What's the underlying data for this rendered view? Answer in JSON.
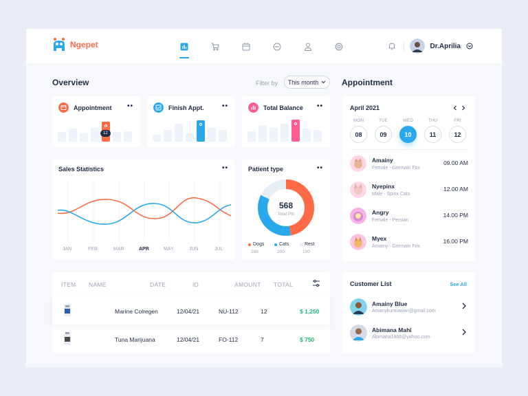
{
  "brand": {
    "name": "Ngepet"
  },
  "nav": {
    "icons": [
      "chart-icon",
      "cart-icon",
      "calendar-icon",
      "chat-icon",
      "user-icon",
      "settings-icon"
    ],
    "active_index": 0
  },
  "user": {
    "name": "Dr.Aprilia"
  },
  "overview": {
    "title": "Overview",
    "filter_label": "Filter by",
    "filter_value": "This month",
    "cards": [
      {
        "title": "Appointment",
        "accent": "#ff6b45",
        "marker": "12",
        "bars": [
          0.4,
          0.55,
          0.35,
          0.6,
          0.85,
          0.4,
          0.45
        ]
      },
      {
        "title": "Finish Appt.",
        "accent": "#2aa8ec",
        "bars": [
          0.3,
          0.5,
          0.75,
          0.35,
          0.9,
          0.6,
          0.5
        ]
      },
      {
        "title": "Total Balance",
        "accent": "#ff5c93",
        "bars": [
          0.45,
          0.7,
          0.6,
          0.75,
          0.95,
          0.55,
          0.5
        ]
      }
    ]
  },
  "sales": {
    "title": "Sales Statistics",
    "months": [
      "JAN",
      "FEB",
      "MAR",
      "APR",
      "MAY",
      "JUN",
      "JUL"
    ],
    "active_month": "APR"
  },
  "patient": {
    "title": "Patient type",
    "total": "568",
    "total_label": "Total Ptn",
    "legend": [
      {
        "label": "Dogs",
        "value": "268",
        "color": "#ff6b45"
      },
      {
        "label": "Cats",
        "value": "200",
        "color": "#2aa8ec"
      },
      {
        "label": "Rest",
        "value": "100",
        "color": "#e8eef8"
      }
    ]
  },
  "table": {
    "headers": [
      "ITEM",
      "NAME",
      "DATE",
      "ID",
      "AMOUNT",
      "TOTAL"
    ],
    "rows": [
      {
        "name": "Marine Colregen",
        "date": "12/04/21",
        "id": "NU-112",
        "amount": "12",
        "total": "$ 1,250"
      },
      {
        "name": "Tuna Marijuana",
        "date": "12/04/21",
        "id": "FO-112",
        "amount": "7",
        "total": "$ 750"
      }
    ]
  },
  "appointment": {
    "title": "Appointment",
    "month": "April 2021",
    "days": [
      {
        "dow": "MON",
        "num": "08"
      },
      {
        "dow": "TUE",
        "num": "09"
      },
      {
        "dow": "WED",
        "num": "10",
        "selected": true
      },
      {
        "dow": "THU",
        "num": "11"
      },
      {
        "dow": "FRI",
        "num": "12"
      }
    ],
    "list": [
      {
        "name": "Amainy",
        "sub": "Female - Germain Fox",
        "time": "09.00 AM"
      },
      {
        "name": "Nyepinx",
        "sub": "Male - Spinx Cats",
        "time": "12.00 AM"
      },
      {
        "name": "Angry",
        "sub": "Female - Persian",
        "time": "14.00 PM"
      },
      {
        "name": "Myex",
        "sub": "Amainy - Germain Fox",
        "time": "16.00 PM"
      }
    ]
  },
  "customers": {
    "title": "Customer List",
    "see_all": "See All",
    "list": [
      {
        "name": "Amainy Blue",
        "email": "Amanykurniawan@gmail.com"
      },
      {
        "name": "Abimana Mahi",
        "email": "Abimana1988@yahoo.com"
      }
    ]
  }
}
